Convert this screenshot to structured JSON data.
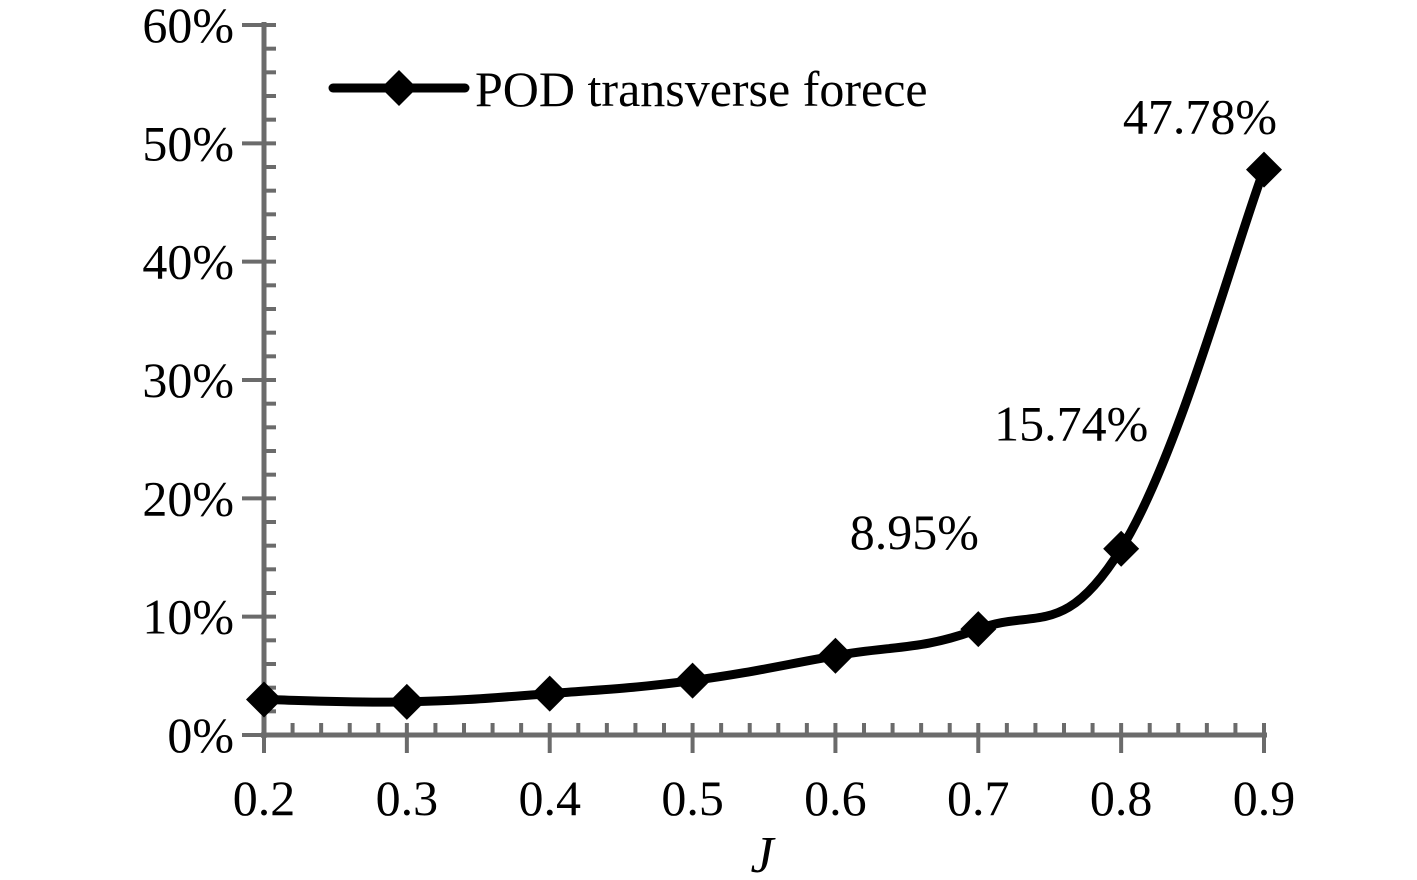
{
  "chart_data": {
    "type": "line",
    "title": "",
    "xlabel": "J",
    "ylabel": "",
    "x": [
      0.2,
      0.3,
      0.4,
      0.5,
      0.6,
      0.7,
      0.8,
      0.9
    ],
    "x_tick_labels": [
      "0.2",
      "0.3",
      "0.4",
      "0.5",
      "0.6",
      "0.7",
      "0.8",
      "0.9"
    ],
    "y_tick_labels": [
      "0%",
      "10%",
      "20%",
      "30%",
      "40%",
      "50%",
      "60%"
    ],
    "y_ticks": [
      0,
      10,
      20,
      30,
      40,
      50,
      60
    ],
    "ylim": [
      0,
      60
    ],
    "xlim": [
      0.2,
      0.9
    ],
    "grid": false,
    "legend_position": "top-left",
    "series": [
      {
        "name": "POD transverse forece",
        "marker": "diamond",
        "smooth": true,
        "color": "#000000",
        "values": [
          3.0,
          2.8,
          3.5,
          4.6,
          6.7,
          8.95,
          15.74,
          47.78
        ]
      }
    ],
    "data_labels": [
      {
        "index": 5,
        "text": "8.95%"
      },
      {
        "index": 6,
        "text": "15.74%"
      },
      {
        "index": 7,
        "text": "47.78%"
      }
    ],
    "axis_color": "#6b6b6b"
  }
}
